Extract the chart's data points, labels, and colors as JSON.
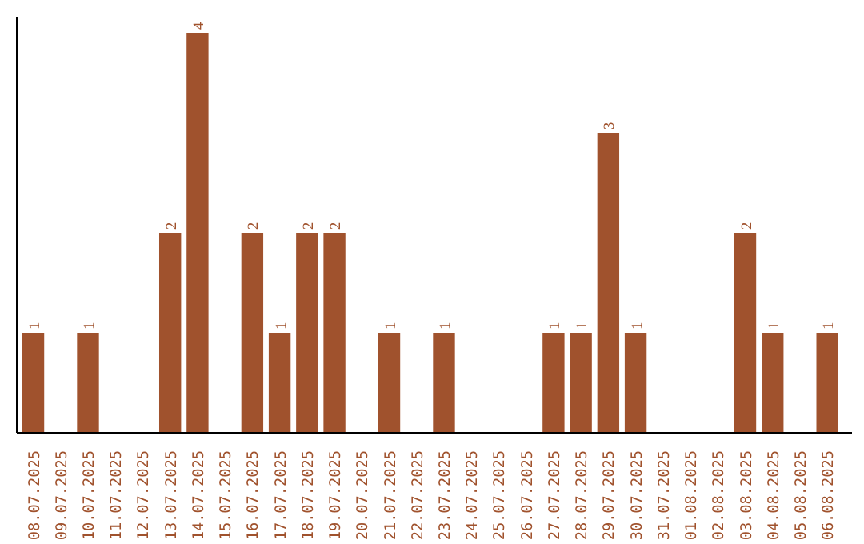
{
  "chart_data": {
    "type": "bar",
    "categories": [
      "08.07.2025",
      "09.07.2025",
      "10.07.2025",
      "11.07.2025",
      "12.07.2025",
      "13.07.2025",
      "14.07.2025",
      "15.07.2025",
      "16.07.2025",
      "17.07.2025",
      "18.07.2025",
      "19.07.2025",
      "20.07.2025",
      "21.07.2025",
      "22.07.2025",
      "23.07.2025",
      "24.07.2025",
      "25.07.2025",
      "26.07.2025",
      "27.07.2025",
      "28.07.2025",
      "29.07.2025",
      "30.07.2025",
      "31.07.2025",
      "01.08.2025",
      "02.08.2025",
      "03.08.2025",
      "04.08.2025",
      "05.08.2025",
      "06.08.2025"
    ],
    "values": [
      1,
      0,
      1,
      0,
      0,
      2,
      4,
      0,
      2,
      1,
      2,
      2,
      0,
      1,
      0,
      1,
      0,
      0,
      0,
      1,
      1,
      3,
      1,
      0,
      0,
      0,
      2,
      1,
      0,
      1
    ],
    "value_labels": [
      "1",
      null,
      "1",
      null,
      null,
      "2",
      "4",
      null,
      "2",
      "1",
      "2",
      "2",
      null,
      "1",
      null,
      "1",
      null,
      null,
      null,
      "1",
      "1",
      "3",
      "1",
      null,
      null,
      null,
      "2",
      "1",
      null,
      "1"
    ],
    "color": "#a0522d",
    "tick_labels": "x",
    "grid": false
  }
}
